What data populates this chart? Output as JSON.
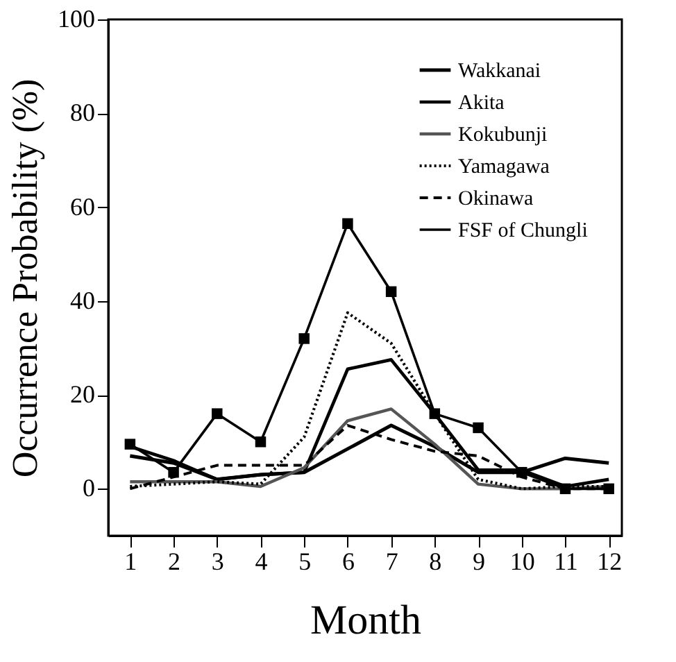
{
  "chart_data": {
    "type": "line",
    "xlabel": "Month",
    "ylabel": "Occurrence Probability (%)",
    "x": [
      1,
      2,
      3,
      4,
      5,
      6,
      7,
      8,
      9,
      10,
      11,
      12
    ],
    "xlim": [
      0.5,
      12.3
    ],
    "xticks": [
      1,
      2,
      3,
      4,
      5,
      6,
      7,
      8,
      9,
      10,
      11,
      12
    ],
    "ylim": [
      -10,
      100
    ],
    "yticks": [
      0,
      20,
      40,
      60,
      80,
      100
    ],
    "grid": false,
    "legend": "top right",
    "series": [
      {
        "name": "Wakkanai",
        "color": "#000000",
        "line_style": "solid",
        "values": [
          7,
          5.5,
          2,
          3,
          3.5,
          8.5,
          13.5,
          9,
          3.5,
          3.5,
          6.5,
          5.5
        ]
      },
      {
        "name": "Akita",
        "color": "#000000",
        "line_style": "solid",
        "values": [
          9,
          6,
          2,
          3,
          3.5,
          25.5,
          27.5,
          16,
          4,
          4,
          0.5,
          2
        ]
      },
      {
        "name": "Kokubunji",
        "color": "#555555",
        "line_style": "solid",
        "values": [
          1.5,
          1.5,
          1.5,
          0.5,
          4.5,
          14.5,
          17,
          9.5,
          1,
          0,
          0,
          0.5
        ]
      },
      {
        "name": "Yamagawa",
        "color": "#000000",
        "line_style": "dotted",
        "values": [
          0.5,
          1,
          1.5,
          1,
          11,
          37.5,
          31,
          16,
          2,
          0,
          0.5,
          0.5
        ]
      },
      {
        "name": "Okinawa",
        "color": "#000000",
        "line_style": "dashed",
        "values": [
          0,
          2.5,
          5,
          5,
          5,
          13.5,
          10.5,
          8,
          7,
          2.5,
          0,
          0
        ]
      },
      {
        "name": "FSF of Chungli",
        "color": "#000000",
        "line_style": "solid",
        "marker": "square",
        "values": [
          9.5,
          3.5,
          16,
          10,
          32,
          56.5,
          42,
          16,
          13,
          3.5,
          0,
          0
        ]
      }
    ]
  }
}
